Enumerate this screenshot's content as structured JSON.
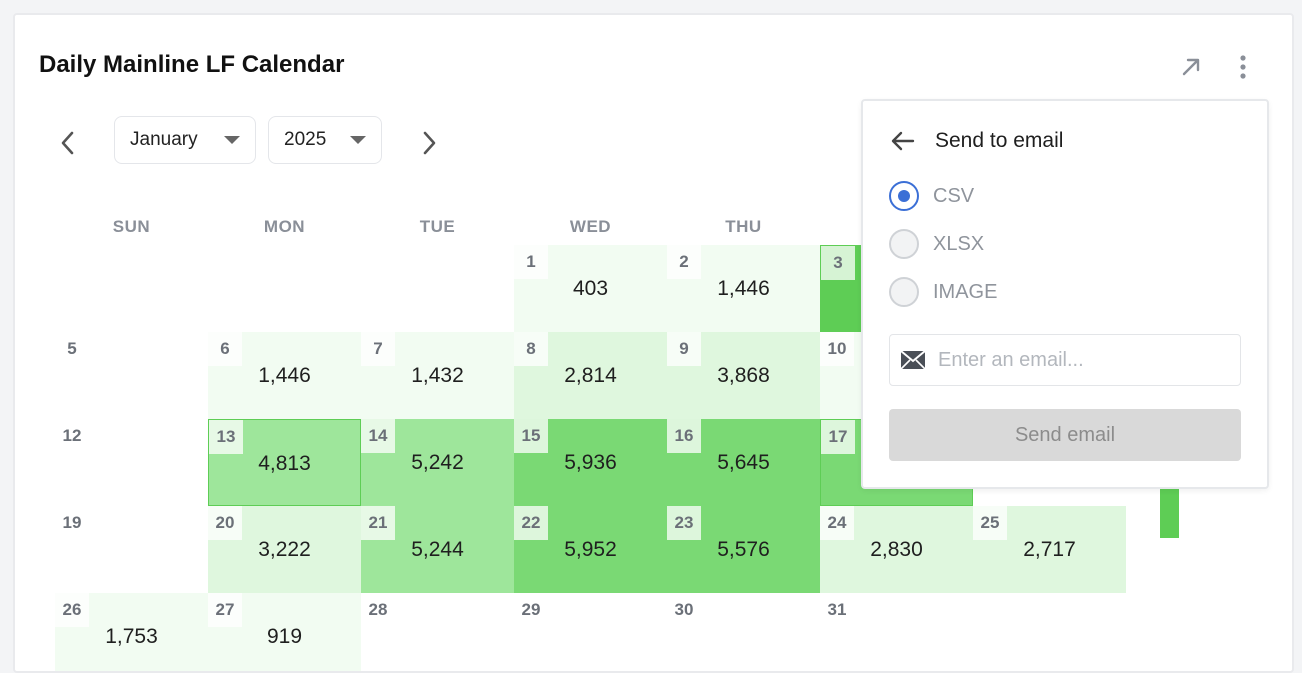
{
  "card": {
    "title": "Daily Mainline LF Calendar"
  },
  "header": {
    "icons": [
      "open-external-icon",
      "kebab-menu-icon"
    ]
  },
  "calendar": {
    "month": "January",
    "year": "2025",
    "weekdays": [
      "SUN",
      "MON",
      "TUE",
      "WED",
      "THU"
    ],
    "days": [
      {
        "day": "1",
        "value": "403",
        "level": 1
      },
      {
        "day": "2",
        "value": "1,446",
        "level": 1
      },
      {
        "day": "3",
        "value": "",
        "level": 5
      },
      {
        "day": "5",
        "value": "",
        "level": 0
      },
      {
        "day": "6",
        "value": "1,446",
        "level": 1
      },
      {
        "day": "7",
        "value": "1,432",
        "level": 1
      },
      {
        "day": "8",
        "value": "2,814",
        "level": 2
      },
      {
        "day": "9",
        "value": "3,868",
        "level": 2
      },
      {
        "day": "10",
        "value": "",
        "level": 1
      },
      {
        "day": "12",
        "value": "",
        "level": 0
      },
      {
        "day": "13",
        "value": "4,813",
        "level": 3
      },
      {
        "day": "14",
        "value": "5,242",
        "level": 3
      },
      {
        "day": "15",
        "value": "5,936",
        "level": 4
      },
      {
        "day": "16",
        "value": "5,645",
        "level": 4
      },
      {
        "day": "17",
        "value": "",
        "level": 4
      },
      {
        "day": "19",
        "value": "",
        "level": 0
      },
      {
        "day": "20",
        "value": "3,222",
        "level": 2
      },
      {
        "day": "21",
        "value": "5,244",
        "level": 3
      },
      {
        "day": "22",
        "value": "5,952",
        "level": 4
      },
      {
        "day": "23",
        "value": "5,576",
        "level": 4
      },
      {
        "day": "24",
        "value": "2,830",
        "level": 2
      },
      {
        "day": "25",
        "value": "2,717",
        "level": 2
      },
      {
        "day": "26",
        "value": "1,753",
        "level": 1
      },
      {
        "day": "27",
        "value": "919",
        "level": 1
      },
      {
        "day": "28",
        "value": "",
        "level": 0
      },
      {
        "day": "29",
        "value": "",
        "level": 0
      },
      {
        "day": "30",
        "value": "",
        "level": 0
      },
      {
        "day": "31",
        "value": "",
        "level": 0
      }
    ]
  },
  "colors": {
    "level_0": "#ffffff",
    "level_1": "#f2fcf2",
    "level_2": "#dff7de",
    "level_3": "#9ee69b",
    "level_4": "#7ad974",
    "level_5": "#5ecd55",
    "accent": "#3b6fd6"
  },
  "export_panel": {
    "title": "Send to email",
    "formats": [
      "CSV",
      "XLSX",
      "IMAGE"
    ],
    "selected_format": "CSV",
    "email_placeholder": "Enter an email...",
    "email_value": "",
    "send_label": "Send email"
  }
}
